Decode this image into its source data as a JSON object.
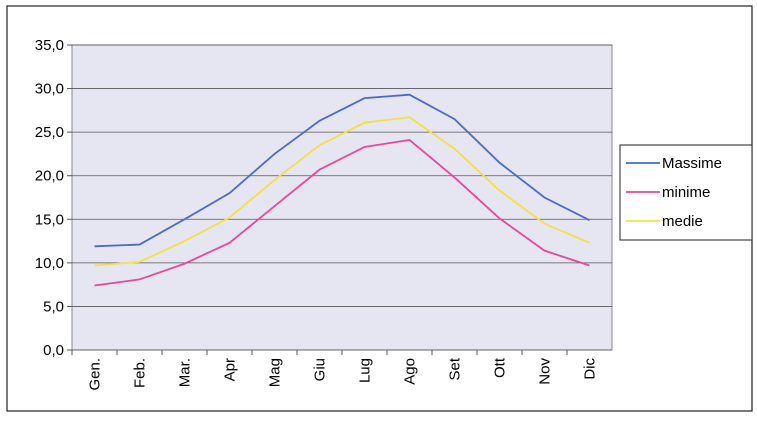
{
  "chart_data": {
    "type": "line",
    "categories": [
      "Gen.",
      "Feb.",
      "Mar.",
      "Apr",
      "Mag",
      "Giu",
      "Lug",
      "Ago",
      "Set",
      "Ott",
      "Nov",
      "Dic"
    ],
    "series": [
      {
        "name": "Massime",
        "color": "#4a6cc8",
        "values": [
          11.9,
          12.1,
          15.0,
          18.0,
          22.5,
          26.3,
          28.9,
          29.3,
          26.5,
          21.5,
          17.5,
          14.9
        ]
      },
      {
        "name": "minime",
        "color": "#e8479a",
        "values": [
          7.4,
          8.1,
          9.9,
          12.3,
          16.5,
          20.7,
          23.3,
          24.1,
          19.8,
          15.1,
          11.4,
          9.7
        ]
      },
      {
        "name": "medie",
        "color": "#f2e23c",
        "values": [
          9.7,
          10.1,
          12.5,
          15.2,
          19.5,
          23.5,
          26.1,
          26.7,
          23.1,
          18.3,
          14.5,
          12.3
        ]
      }
    ],
    "ylim": [
      0,
      35
    ],
    "yticks": [
      {
        "value": 0,
        "label": "0,0"
      },
      {
        "value": 5,
        "label": "5,0"
      },
      {
        "value": 10,
        "label": "10,0"
      },
      {
        "value": 15,
        "label": "15,0"
      },
      {
        "value": 20,
        "label": "20,0"
      },
      {
        "value": 25,
        "label": "25,0"
      },
      {
        "value": 30,
        "label": "30,0"
      },
      {
        "value": 35,
        "label": "35,0"
      }
    ],
    "grid": true,
    "legend": "right"
  }
}
